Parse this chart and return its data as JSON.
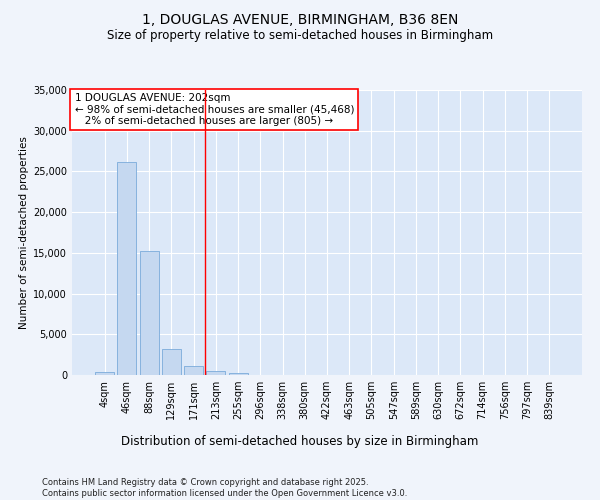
{
  "title": "1, DOUGLAS AVENUE, BIRMINGHAM, B36 8EN",
  "subtitle": "Size of property relative to semi-detached houses in Birmingham",
  "xlabel": "Distribution of semi-detached houses by size in Birmingham",
  "ylabel": "Number of semi-detached properties",
  "categories": [
    "4sqm",
    "46sqm",
    "88sqm",
    "129sqm",
    "171sqm",
    "213sqm",
    "255sqm",
    "296sqm",
    "338sqm",
    "380sqm",
    "422sqm",
    "463sqm",
    "505sqm",
    "547sqm",
    "589sqm",
    "630sqm",
    "672sqm",
    "714sqm",
    "756sqm",
    "797sqm",
    "839sqm"
  ],
  "values": [
    400,
    26100,
    15200,
    3250,
    1150,
    450,
    250,
    0,
    0,
    0,
    0,
    0,
    0,
    0,
    0,
    0,
    0,
    0,
    0,
    0,
    0
  ],
  "bar_color": "#c5d8f0",
  "bar_edge_color": "#7aabdb",
  "vline_x": 4.5,
  "vline_color": "red",
  "annotation_text": "1 DOUGLAS AVENUE: 202sqm\n← 98% of semi-detached houses are smaller (45,468)\n   2% of semi-detached houses are larger (805) →",
  "annotation_box_color": "white",
  "annotation_box_edge_color": "red",
  "ylim": [
    0,
    35000
  ],
  "yticks": [
    0,
    5000,
    10000,
    15000,
    20000,
    25000,
    30000,
    35000
  ],
  "background_color": "#f0f4fb",
  "plot_background_color": "#dce8f8",
  "footer_text": "Contains HM Land Registry data © Crown copyright and database right 2025.\nContains public sector information licensed under the Open Government Licence v3.0.",
  "title_fontsize": 10,
  "subtitle_fontsize": 8.5,
  "xlabel_fontsize": 8.5,
  "ylabel_fontsize": 7.5,
  "tick_fontsize": 7,
  "annotation_fontsize": 7.5,
  "footer_fontsize": 6
}
